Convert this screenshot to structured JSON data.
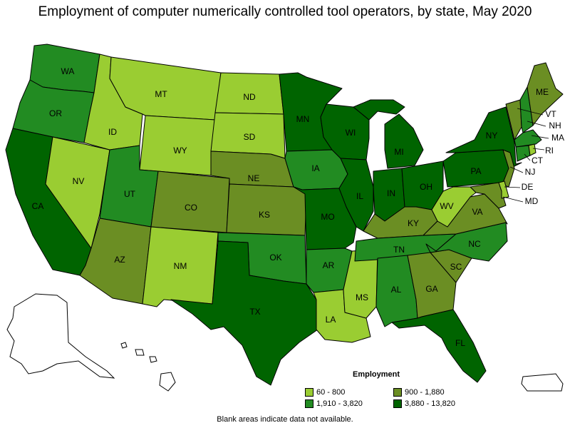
{
  "title": "Employment of computer numerically controlled tool operators, by state, May 2020",
  "footnote": "Blank areas indicate data not available.",
  "legend": {
    "title": "Employment",
    "bins": [
      {
        "key": "b1",
        "label": "60 - 800",
        "color": "#9acd32"
      },
      {
        "key": "b2",
        "label": "900 - 1,880",
        "color": "#6b8e23"
      },
      {
        "key": "b3",
        "label": "1,910 - 3,820",
        "color": "#228b22"
      },
      {
        "key": "b4",
        "label": "3,880 - 13,820",
        "color": "#006400"
      }
    ]
  },
  "states": {
    "WA": "b3",
    "OR": "b3",
    "CA": "b4",
    "NV": "b1",
    "ID": "b1",
    "MT": "b1",
    "WY": "b1",
    "UT": "b3",
    "AZ": "b2",
    "CO": "b2",
    "NM": "b1",
    "ND": "b1",
    "SD": "b1",
    "NE": "b2",
    "KS": "b2",
    "OK": "b3",
    "TX": "b4",
    "MN": "b4",
    "IA": "b3",
    "MO": "b4",
    "AR": "b3",
    "LA": "b1",
    "WI": "b4",
    "IL": "b4",
    "MS": "b1",
    "MI": "b4",
    "IN": "b4",
    "OH": "b4",
    "KY": "b2",
    "TN": "b3",
    "AL": "b3",
    "GA": "b2",
    "FL": "b4",
    "SC": "b2",
    "NC": "b3",
    "VA": "b2",
    "WV": "b1",
    "PA": "b4",
    "NY": "b4",
    "ME": "b2",
    "NJ": "b2",
    "MD": "b2",
    "DE": "b1",
    "CT": "b3",
    "RI": "b1",
    "MA": "b3",
    "NH": "b3",
    "VT": "b2",
    "AK": "none",
    "HI": "none",
    "PR": "none"
  }
}
